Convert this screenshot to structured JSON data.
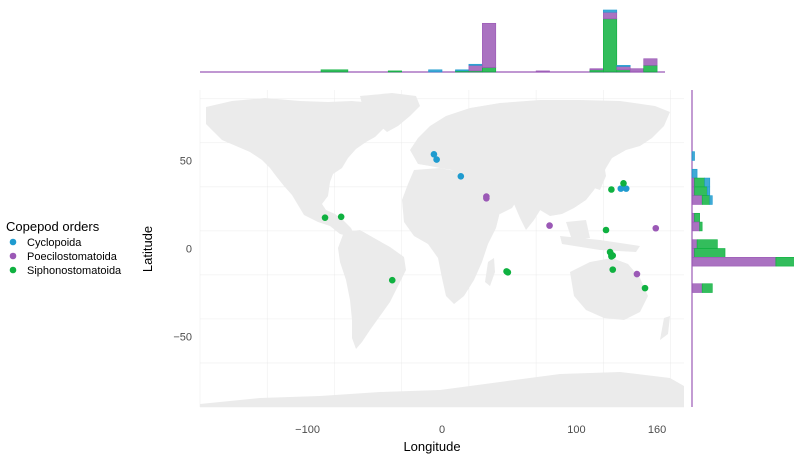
{
  "chart_data": {
    "type": "scatter",
    "xlabel": "Longitude",
    "ylabel": "Latitude",
    "xlim": [
      -180,
      180
    ],
    "ylim": [
      -90,
      90
    ],
    "x_ticks": [
      -100,
      0,
      100,
      160
    ],
    "y_ticks": [
      -50,
      0,
      50
    ],
    "grid": true,
    "background": "world-map",
    "legend": {
      "title": "Copepod orders",
      "placement": "left",
      "entries": [
        "Cyclopoida",
        "Poecilostomatoida",
        "Siphonostomatoida"
      ]
    },
    "colors": {
      "Cyclopoida": "#1f9bcf",
      "Poecilostomatoida": "#9b59b6",
      "Siphonostomatoida": "#0fb140",
      "land": "#ebebeb",
      "grid": "#e6e6e6"
    },
    "series": [
      {
        "name": "Cyclopoida",
        "points": [
          [
            -6,
            53.5
          ],
          [
            -4,
            50.5
          ],
          [
            14,
            41
          ],
          [
            133,
            34
          ],
          [
            137,
            34
          ]
        ]
      },
      {
        "name": "Poecilostomatoida",
        "points": [
          [
            33,
            29.5
          ],
          [
            33,
            28.5
          ],
          [
            80,
            13
          ],
          [
            159,
            11.5
          ],
          [
            145,
            -14.5
          ]
        ]
      },
      {
        "name": "Siphonostomatoida",
        "points": [
          [
            -87,
            17.5
          ],
          [
            -75,
            18
          ],
          [
            -37,
            -18
          ],
          [
            48,
            -13
          ],
          [
            49,
            -13.5
          ],
          [
            126,
            33.5
          ],
          [
            135,
            37
          ],
          [
            122,
            10.5
          ],
          [
            125,
            -2
          ],
          [
            126,
            -3.5
          ],
          [
            126,
            -4.5
          ],
          [
            127,
            -4
          ],
          [
            127,
            -12
          ],
          [
            151,
            -22.5
          ]
        ]
      }
    ],
    "top_histogram": {
      "axis": "longitude",
      "bin_width": 10,
      "bins": [
        {
          "x0": -180,
          "x1": -90,
          "Cyclopoida": 0,
          "Poecilostomatoida": 0,
          "Siphonostomatoida": 0
        },
        {
          "x0": -90,
          "x1": -70,
          "Cyclopoida": 0,
          "Poecilostomatoida": 0,
          "Siphonostomatoida": 2
        },
        {
          "x0": -40,
          "x1": -30,
          "Cyclopoida": 0,
          "Poecilostomatoida": 0,
          "Siphonostomatoida": 1
        },
        {
          "x0": -10,
          "x1": 0,
          "Cyclopoida": 2,
          "Poecilostomatoida": 0,
          "Siphonostomatoida": 0
        },
        {
          "x0": 10,
          "x1": 20,
          "Cyclopoida": 1,
          "Poecilostomatoida": 0,
          "Siphonostomatoida": 1
        },
        {
          "x0": 20,
          "x1": 30,
          "Cyclopoida": 1,
          "Poecilostomatoida": 5,
          "Siphonostomatoida": 1
        },
        {
          "x0": 30,
          "x1": 40,
          "Cyclopoida": 0,
          "Poecilostomatoida": 40,
          "Siphonostomatoida": 4
        },
        {
          "x0": 70,
          "x1": 80,
          "Cyclopoida": 0,
          "Poecilostomatoida": 1,
          "Siphonostomatoida": 0
        },
        {
          "x0": 110,
          "x1": 120,
          "Cyclopoida": 0,
          "Poecilostomatoida": 1,
          "Siphonostomatoida": 2
        },
        {
          "x0": 120,
          "x1": 130,
          "Cyclopoida": 2,
          "Poecilostomatoida": 6,
          "Siphonostomatoida": 48
        },
        {
          "x0": 130,
          "x1": 140,
          "Cyclopoida": 1,
          "Poecilostomatoida": 3,
          "Siphonostomatoida": 2
        },
        {
          "x0": 140,
          "x1": 150,
          "Cyclopoida": 0,
          "Poecilostomatoida": 3,
          "Siphonostomatoida": 0
        },
        {
          "x0": 150,
          "x1": 160,
          "Cyclopoida": 0,
          "Poecilostomatoida": 6,
          "Siphonostomatoida": 6
        }
      ]
    },
    "right_histogram": {
      "axis": "latitude",
      "bin_width": 5,
      "bins": [
        {
          "y0": 50,
          "y1": 55,
          "Cyclopoida": 1,
          "Poecilostomatoida": 0,
          "Siphonostomatoida": 0
        },
        {
          "y0": 40,
          "y1": 45,
          "Cyclopoida": 2,
          "Poecilostomatoida": 0,
          "Siphonostomatoida": 0
        },
        {
          "y0": 35,
          "y1": 40,
          "Cyclopoida": 2,
          "Poecilostomatoida": 1,
          "Siphonostomatoida": 4
        },
        {
          "y0": 30,
          "y1": 35,
          "Cyclopoida": 1,
          "Poecilostomatoida": 1,
          "Siphonostomatoida": 5
        },
        {
          "y0": 25,
          "y1": 30,
          "Cyclopoida": 1,
          "Poecilostomatoida": 4,
          "Siphonostomatoida": 3
        },
        {
          "y0": 15,
          "y1": 20,
          "Cyclopoida": 0,
          "Poecilostomatoida": 1,
          "Siphonostomatoida": 2
        },
        {
          "y0": 10,
          "y1": 15,
          "Cyclopoida": 0,
          "Poecilostomatoida": 3,
          "Siphonostomatoida": 1
        },
        {
          "y0": 0,
          "y1": 5,
          "Cyclopoida": 0,
          "Poecilostomatoida": 2,
          "Siphonostomatoida": 8
        },
        {
          "y0": -5,
          "y1": 0,
          "Cyclopoida": 0,
          "Poecilostomatoida": 1,
          "Siphonostomatoida": 12
        },
        {
          "y0": -10,
          "y1": -5,
          "Cyclopoida": 0,
          "Poecilostomatoida": 33,
          "Siphonostomatoida": 11
        },
        {
          "y0": -25,
          "y1": -20,
          "Cyclopoida": 0,
          "Poecilostomatoida": 4,
          "Siphonostomatoida": 4
        }
      ]
    }
  }
}
